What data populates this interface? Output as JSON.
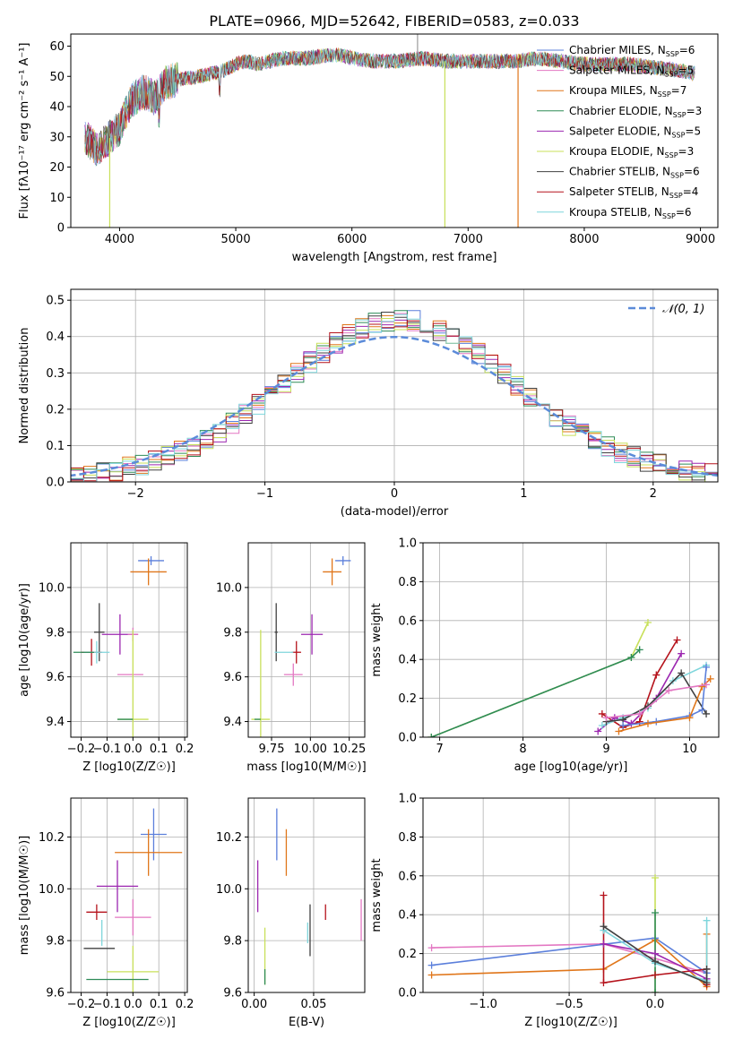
{
  "figure": {
    "title": "PLATE=0966, MJD=52642, FIBERID=0583, z=0.033"
  },
  "colors": {
    "Chabrier MILES": "#5b7fdb",
    "Salpeter MILES": "#e377c2",
    "Kroupa MILES": "#e0761a",
    "Chabrier ELODIE": "#2e8b57",
    "Salpeter ELODIE": "#9c27b0",
    "Kroupa ELODIE": "#c8e05a",
    "Chabrier STELIB": "#404040",
    "Salpeter STELIB": "#b5121b",
    "Kroupa STELIB": "#7fd6dc",
    "normal": "#5b8bd9"
  },
  "chart_data": [
    {
      "id": "spectrum",
      "type": "line",
      "xlabel": "wavelength [Angstrom, rest frame]",
      "ylabel": "Flux [fλ10⁻¹⁷ erg cm⁻² s⁻¹ A⁻¹]",
      "xlim": [
        3580,
        9150
      ],
      "ylim": [
        0,
        64
      ],
      "xticks": [
        4000,
        5000,
        6000,
        7000,
        8000,
        9000
      ],
      "yticks": [
        0,
        10,
        20,
        30,
        40,
        50,
        60
      ],
      "grid": false,
      "legend_position": "top-right",
      "legend": [
        "Chabrier MILES, N_SSP=6",
        "Salpeter MILES, N_SSP=5",
        "Kroupa MILES, N_SSP=7",
        "Chabrier ELODIE, N_SSP=3",
        "Salpeter ELODIE, N_SSP=5",
        "Kroupa ELODIE, N_SSP=3",
        "Chabrier STELIB, N_SSP=6",
        "Salpeter STELIB, N_SSP=4",
        "Kroupa STELIB, N_SSP=6"
      ],
      "continuum": {
        "x": [
          3700,
          3800,
          3900,
          4000,
          4100,
          4200,
          4300,
          4400,
          4500,
          4700,
          4900,
          5000,
          5100,
          5200,
          5400,
          5600,
          5800,
          5900,
          6000,
          6200,
          6400,
          6600,
          6800,
          7000,
          7200,
          7400,
          7600,
          7800,
          8000,
          8200,
          8400,
          8600,
          8800,
          8950
        ],
        "y": [
          30,
          26,
          29,
          33,
          42,
          45,
          43,
          48,
          49,
          50,
          52,
          54,
          55,
          54,
          56,
          56,
          57,
          57,
          56,
          55,
          55,
          56,
          55,
          55,
          55,
          55,
          56,
          55,
          54,
          54,
          54,
          53,
          52,
          51
        ]
      },
      "drops": [
        {
          "x": 3915,
          "y_min": 0
        },
        {
          "x": 6800,
          "y_min": 0
        },
        {
          "x": 7430,
          "y_min": 0
        }
      ],
      "spike": {
        "x": 6565,
        "y": 64
      }
    },
    {
      "id": "residual-hist",
      "type": "line",
      "xlabel": "(data-model)/error",
      "ylabel": "Normed distribution",
      "xlim": [
        -2.5,
        2.5
      ],
      "ylim": [
        0,
        0.53
      ],
      "xticks": [
        -2,
        -1,
        0,
        1,
        2
      ],
      "yticks": [
        0.0,
        0.1,
        0.2,
        0.3,
        0.4,
        0.5
      ],
      "grid": true,
      "legend_position": "top-right",
      "legend": [
        "𝒩(0, 1)"
      ],
      "bin_width": 0.1,
      "bins_start": -2.5,
      "reference_curve": "normal(0,1)"
    },
    {
      "id": "z-age",
      "type": "scatter",
      "xlabel": "Z [log10(Z/Z☉)]",
      "ylabel": "age  [log10(age/yr)]",
      "xlim": [
        -0.24,
        0.21
      ],
      "ylim": [
        9.33,
        10.2
      ],
      "xticks": [
        -0.2,
        -0.1,
        0.0,
        0.1,
        0.2
      ],
      "yticks": [
        9.4,
        9.6,
        9.8,
        10.0
      ],
      "grid": true,
      "points": [
        {
          "series": "Chabrier MILES",
          "x": 0.07,
          "y": 10.12,
          "xerr": 0.05,
          "yerr": 0.02
        },
        {
          "series": "Kroupa MILES",
          "x": 0.06,
          "y": 10.07,
          "xerr": 0.07,
          "yerr": 0.06
        },
        {
          "series": "Chabrier STELIB",
          "x": -0.13,
          "y": 9.8,
          "xerr": 0.02,
          "yerr": 0.13
        },
        {
          "series": "Salpeter ELODIE",
          "x": -0.05,
          "y": 9.79,
          "xerr": 0.07,
          "yerr": 0.09
        },
        {
          "series": "Salpeter MILES",
          "x": 0.0,
          "y": 9.79,
          "xerr": 0.02,
          "yerr": 0.03
        },
        {
          "series": "Salpeter STELIB",
          "x": -0.16,
          "y": 9.71,
          "xerr": 0.04,
          "yerr": 0.06
        },
        {
          "series": "Kroupa STELIB",
          "x": -0.14,
          "y": 9.71,
          "xerr": 0.05,
          "yerr": 0.05
        },
        {
          "series": "Chabrier ELODIE",
          "x": -0.19,
          "y": 9.71,
          "xerr": 0.04,
          "yerr": 0.0
        },
        {
          "series": "Salpeter MILES",
          "x": -0.01,
          "y": 9.61,
          "xerr": 0.05,
          "yerr": 0.0
        },
        {
          "series": "Kroupa ELODIE",
          "x": 0.0,
          "y": 9.41,
          "xerr": 0.06,
          "yerr": 0.4
        },
        {
          "series": "Chabrier ELODIE",
          "x": -0.03,
          "y": 9.41,
          "xerr": 0.03,
          "yerr": 0.0
        }
      ]
    },
    {
      "id": "mass-age",
      "type": "scatter",
      "xlabel": "mass [log10(M/M☉)]",
      "ylabel": "",
      "xlim": [
        9.6,
        10.35
      ],
      "ylim": [
        9.33,
        10.2
      ],
      "xticks": [
        9.75,
        10.0,
        10.25
      ],
      "yticks": [
        9.4,
        9.6,
        9.8,
        10.0
      ],
      "grid": true,
      "points": [
        {
          "series": "Chabrier MILES",
          "x": 10.21,
          "y": 10.12,
          "xerr": 0.05,
          "yerr": 0.02
        },
        {
          "series": "Kroupa MILES",
          "x": 10.14,
          "y": 10.07,
          "xerr": 0.06,
          "yerr": 0.06
        },
        {
          "series": "Chabrier STELIB",
          "x": 9.78,
          "y": 9.8,
          "xerr": 0.01,
          "yerr": 0.13
        },
        {
          "series": "Salpeter ELODIE",
          "x": 10.01,
          "y": 9.79,
          "xerr": 0.07,
          "yerr": 0.09
        },
        {
          "series": "Salpeter STELIB",
          "x": 9.91,
          "y": 9.71,
          "xerr": 0.03,
          "yerr": 0.05
        },
        {
          "series": "Kroupa STELIB",
          "x": 9.83,
          "y": 9.71,
          "xerr": 0.06,
          "yerr": 0.0
        },
        {
          "series": "Salpeter MILES",
          "x": 9.89,
          "y": 9.61,
          "xerr": 0.06,
          "yerr": 0.05
        },
        {
          "series": "Kroupa ELODIE",
          "x": 9.68,
          "y": 9.41,
          "xerr": 0.06,
          "yerr": 0.4
        },
        {
          "series": "Chabrier ELODIE",
          "x": 9.66,
          "y": 9.41,
          "xerr": 0.02,
          "yerr": 0.0
        }
      ]
    },
    {
      "id": "age-weight",
      "type": "line",
      "xlabel": "age  [log10(age/yr)]",
      "ylabel": "mass weight",
      "xlim": [
        6.8,
        10.35
      ],
      "ylim": [
        0,
        1.0
      ],
      "xticks": [
        7,
        8,
        9,
        10
      ],
      "yticks": [
        0.0,
        0.2,
        0.4,
        0.6,
        0.8,
        1.0
      ],
      "grid": true,
      "series": [
        {
          "name": "Kroupa ELODIE",
          "x": [
            6.9,
            9.3,
            9.5
          ],
          "y": [
            0.0,
            0.41,
            0.59
          ]
        },
        {
          "name": "Chabrier ELODIE",
          "x": [
            6.9,
            9.3,
            9.4
          ],
          "y": [
            0.0,
            0.41,
            0.45
          ]
        },
        {
          "name": "Salpeter STELIB",
          "x": [
            8.95,
            9.2,
            9.4,
            9.6,
            9.85
          ],
          "y": [
            0.12,
            0.05,
            0.08,
            0.32,
            0.5
          ]
        },
        {
          "name": "Salpeter ELODIE",
          "x": [
            8.9,
            9.1,
            9.3,
            9.6,
            9.9
          ],
          "y": [
            0.03,
            0.1,
            0.07,
            0.2,
            0.43
          ]
        },
        {
          "name": "Kroupa STELIB",
          "x": [
            8.95,
            9.2,
            9.5,
            9.8,
            10.2
          ],
          "y": [
            0.06,
            0.1,
            0.15,
            0.29,
            0.37
          ]
        },
        {
          "name": "Chabrier STELIB",
          "x": [
            9.0,
            9.2,
            9.5,
            9.9,
            10.2
          ],
          "y": [
            0.08,
            0.09,
            0.16,
            0.33,
            0.12
          ]
        },
        {
          "name": "Chabrier MILES",
          "x": [
            9.2,
            9.6,
            10.0,
            10.15,
            10.2
          ],
          "y": [
            0.06,
            0.08,
            0.11,
            0.14,
            0.36
          ]
        },
        {
          "name": "Kroupa MILES",
          "x": [
            9.15,
            9.5,
            10.0,
            10.15,
            10.25
          ],
          "y": [
            0.03,
            0.07,
            0.1,
            0.26,
            0.3
          ]
        },
        {
          "name": "Salpeter MILES",
          "x": [
            9.0,
            9.4,
            9.75,
            10.2
          ],
          "y": [
            0.1,
            0.12,
            0.24,
            0.27
          ]
        }
      ]
    },
    {
      "id": "z-mass",
      "type": "scatter",
      "xlabel": "Z [log10(Z/Z☉)]",
      "ylabel": "mass [log10(M/M☉)]",
      "xlim": [
        -0.24,
        0.21
      ],
      "ylim": [
        9.6,
        10.35
      ],
      "xticks": [
        -0.2,
        -0.1,
        0.0,
        0.1,
        0.2
      ],
      "yticks": [
        9.6,
        9.8,
        10.0,
        10.2
      ],
      "grid": true,
      "points": [
        {
          "series": "Chabrier MILES",
          "x": 0.08,
          "y": 10.21,
          "xerr": 0.05,
          "yerr": 0.1
        },
        {
          "series": "Kroupa MILES",
          "x": 0.06,
          "y": 10.14,
          "xerr": 0.13,
          "yerr": 0.09
        },
        {
          "series": "Salpeter ELODIE",
          "x": -0.06,
          "y": 10.01,
          "xerr": 0.08,
          "yerr": 0.1
        },
        {
          "series": "Salpeter STELIB",
          "x": -0.14,
          "y": 9.91,
          "xerr": 0.04,
          "yerr": 0.03
        },
        {
          "series": "Salpeter MILES",
          "x": 0.0,
          "y": 9.89,
          "xerr": 0.07,
          "yerr": 0.07
        },
        {
          "series": "Kroupa STELIB",
          "x": -0.12,
          "y": 9.83,
          "xerr": 0.0,
          "yerr": 0.05
        },
        {
          "series": "Chabrier STELIB",
          "x": -0.13,
          "y": 9.77,
          "xerr": 0.06,
          "yerr": 0.0
        },
        {
          "series": "Kroupa ELODIE",
          "x": 0.0,
          "y": 9.68,
          "xerr": 0.1,
          "yerr": 0.1
        },
        {
          "series": "Chabrier ELODIE",
          "x": -0.06,
          "y": 9.65,
          "xerr": 0.12,
          "yerr": 0.0
        }
      ]
    },
    {
      "id": "ebv-mass",
      "type": "scatter",
      "xlabel": "E(B-V)",
      "ylabel": "",
      "xlim": [
        -0.005,
        0.093
      ],
      "ylim": [
        9.6,
        10.35
      ],
      "xticks": [
        0.0,
        0.05
      ],
      "yticks": [
        9.6,
        9.8,
        10.0,
        10.2
      ],
      "grid": true,
      "points": [
        {
          "series": "Chabrier MILES",
          "x": 0.019,
          "y": 10.21,
          "xerr": 0.0,
          "yerr": 0.1
        },
        {
          "series": "Kroupa MILES",
          "x": 0.027,
          "y": 10.14,
          "xerr": 0.0,
          "yerr": 0.09
        },
        {
          "series": "Salpeter ELODIE",
          "x": 0.003,
          "y": 10.01,
          "xerr": 0.0,
          "yerr": 0.1
        },
        {
          "series": "Salpeter STELIB",
          "x": 0.06,
          "y": 9.91,
          "xerr": 0.0,
          "yerr": 0.03
        },
        {
          "series": "Salpeter MILES",
          "x": 0.09,
          "y": 9.88,
          "xerr": 0.0,
          "yerr": 0.08
        },
        {
          "series": "Kroupa STELIB",
          "x": 0.045,
          "y": 9.83,
          "xerr": 0.0,
          "yerr": 0.04
        },
        {
          "series": "Chabrier STELIB",
          "x": 0.047,
          "y": 9.84,
          "xerr": 0.0,
          "yerr": 0.1
        },
        {
          "series": "Kroupa ELODIE",
          "x": 0.009,
          "y": 9.74,
          "xerr": 0.0,
          "yerr": 0.11
        },
        {
          "series": "Chabrier ELODIE",
          "x": 0.009,
          "y": 9.66,
          "xerr": 0.0,
          "yerr": 0.03
        }
      ]
    },
    {
      "id": "z-weight",
      "type": "line",
      "xlabel": "Z [log10(Z/Z☉)]",
      "ylabel": "mass weight",
      "xlim": [
        -1.35,
        0.37
      ],
      "ylim": [
        0,
        1.0
      ],
      "xticks": [
        -1.0,
        -0.5,
        0.0
      ],
      "yticks": [
        0.0,
        0.2,
        0.4,
        0.6,
        0.8,
        1.0
      ],
      "grid": true,
      "series": [
        {
          "name": "Salpeter MILES",
          "x": [
            -1.3,
            -0.3,
            0.3
          ],
          "y": [
            0.23,
            0.25,
            0.1
          ]
        },
        {
          "name": "Chabrier MILES",
          "x": [
            -1.3,
            0.0,
            0.3
          ],
          "y": [
            0.14,
            0.28,
            0.1
          ]
        },
        {
          "name": "Kroupa MILES",
          "x": [
            -1.3,
            -0.3,
            0.0,
            0.3,
            0.3
          ],
          "y": [
            0.09,
            0.12,
            0.27,
            0.03,
            0.3
          ]
        },
        {
          "name": "Kroupa ELODIE",
          "x": [
            0.0,
            0.0
          ],
          "y": [
            0.0,
            0.59
          ]
        },
        {
          "name": "Chabrier ELODIE",
          "x": [
            0.0,
            0.0
          ],
          "y": [
            0.0,
            0.41
          ]
        },
        {
          "name": "Salpeter STELIB",
          "x": [
            -0.3,
            -0.3,
            0.0,
            0.3,
            0.3
          ],
          "y": [
            0.5,
            0.05,
            0.09,
            0.12,
            0.04
          ]
        },
        {
          "name": "Salpeter ELODIE",
          "x": [
            -0.3,
            0.0,
            0.3
          ],
          "y": [
            0.25,
            0.2,
            0.07
          ]
        },
        {
          "name": "Kroupa STELIB",
          "x": [
            -0.3,
            0.0,
            0.3,
            0.3
          ],
          "y": [
            0.32,
            0.15,
            0.06,
            0.37
          ]
        },
        {
          "name": "Chabrier STELIB",
          "x": [
            -0.3,
            0.0,
            0.3,
            0.3
          ],
          "y": [
            0.34,
            0.16,
            0.05,
            0.12
          ]
        }
      ]
    }
  ]
}
